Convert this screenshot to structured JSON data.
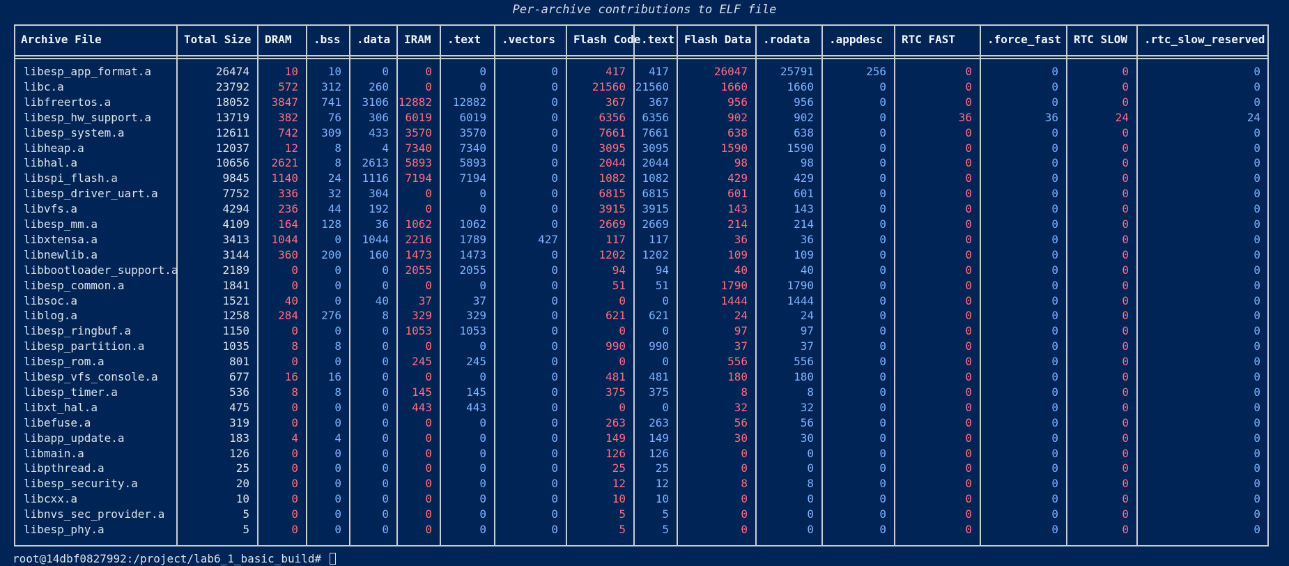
{
  "caption": "Per-archive contributions to ELF file",
  "colors": {
    "background": "#012456",
    "header_text": "#f2f4f7",
    "text_white": "#dde3ea",
    "text_red": "#ff6f7d",
    "text_blue": "#7fb2ff",
    "border": "#c9ced6"
  },
  "columns": [
    {
      "key": "archive",
      "label": "Archive File",
      "color": "white"
    },
    {
      "key": "total",
      "label": "Total Size",
      "color": "white"
    },
    {
      "key": "dram",
      "label": "DRAM",
      "color": "red"
    },
    {
      "key": "bss",
      "label": ".bss",
      "color": "blue"
    },
    {
      "key": "data",
      "label": ".data",
      "color": "blue"
    },
    {
      "key": "iram",
      "label": "IRAM",
      "color": "red"
    },
    {
      "key": "text",
      "label": ".text",
      "color": "blue"
    },
    {
      "key": "vectors",
      "label": ".vectors",
      "color": "blue"
    },
    {
      "key": "flash_code",
      "label": "Flash Code",
      "color": "red"
    },
    {
      "key": "flash_text",
      "label": ".text",
      "color": "blue"
    },
    {
      "key": "flash_data",
      "label": "Flash Data",
      "color": "red"
    },
    {
      "key": "rodata",
      "label": ".rodata",
      "color": "blue"
    },
    {
      "key": "appdesc",
      "label": ".appdesc",
      "color": "blue"
    },
    {
      "key": "rtc_fast",
      "label": "RTC FAST",
      "color": "red"
    },
    {
      "key": "force_fast",
      "label": ".force_fast",
      "color": "blue"
    },
    {
      "key": "rtc_slow",
      "label": "RTC SLOW",
      "color": "red"
    },
    {
      "key": "rtc_slow_reserved",
      "label": ".rtc_slow_reserved",
      "color": "blue"
    }
  ],
  "rows": [
    [
      "libesp_app_format.a",
      "26474",
      "10",
      "10",
      "0",
      "0",
      "0",
      "0",
      "417",
      "417",
      "26047",
      "25791",
      "256",
      "0",
      "0",
      "0",
      "0"
    ],
    [
      "libc.a",
      "23792",
      "572",
      "312",
      "260",
      "0",
      "0",
      "0",
      "21560",
      "21560",
      "1660",
      "1660",
      "0",
      "0",
      "0",
      "0",
      "0"
    ],
    [
      "libfreertos.a",
      "18052",
      "3847",
      "741",
      "3106",
      "12882",
      "12882",
      "0",
      "367",
      "367",
      "956",
      "956",
      "0",
      "0",
      "0",
      "0",
      "0"
    ],
    [
      "libesp_hw_support.a",
      "13719",
      "382",
      "76",
      "306",
      "6019",
      "6019",
      "0",
      "6356",
      "6356",
      "902",
      "902",
      "0",
      "36",
      "36",
      "24",
      "24"
    ],
    [
      "libesp_system.a",
      "12611",
      "742",
      "309",
      "433",
      "3570",
      "3570",
      "0",
      "7661",
      "7661",
      "638",
      "638",
      "0",
      "0",
      "0",
      "0",
      "0"
    ],
    [
      "libheap.a",
      "12037",
      "12",
      "8",
      "4",
      "7340",
      "7340",
      "0",
      "3095",
      "3095",
      "1590",
      "1590",
      "0",
      "0",
      "0",
      "0",
      "0"
    ],
    [
      "libhal.a",
      "10656",
      "2621",
      "8",
      "2613",
      "5893",
      "5893",
      "0",
      "2044",
      "2044",
      "98",
      "98",
      "0",
      "0",
      "0",
      "0",
      "0"
    ],
    [
      "libspi_flash.a",
      "9845",
      "1140",
      "24",
      "1116",
      "7194",
      "7194",
      "0",
      "1082",
      "1082",
      "429",
      "429",
      "0",
      "0",
      "0",
      "0",
      "0"
    ],
    [
      "libesp_driver_uart.a",
      "7752",
      "336",
      "32",
      "304",
      "0",
      "0",
      "0",
      "6815",
      "6815",
      "601",
      "601",
      "0",
      "0",
      "0",
      "0",
      "0"
    ],
    [
      "libvfs.a",
      "4294",
      "236",
      "44",
      "192",
      "0",
      "0",
      "0",
      "3915",
      "3915",
      "143",
      "143",
      "0",
      "0",
      "0",
      "0",
      "0"
    ],
    [
      "libesp_mm.a",
      "4109",
      "164",
      "128",
      "36",
      "1062",
      "1062",
      "0",
      "2669",
      "2669",
      "214",
      "214",
      "0",
      "0",
      "0",
      "0",
      "0"
    ],
    [
      "libxtensa.a",
      "3413",
      "1044",
      "0",
      "1044",
      "2216",
      "1789",
      "427",
      "117",
      "117",
      "36",
      "36",
      "0",
      "0",
      "0",
      "0",
      "0"
    ],
    [
      "libnewlib.a",
      "3144",
      "360",
      "200",
      "160",
      "1473",
      "1473",
      "0",
      "1202",
      "1202",
      "109",
      "109",
      "0",
      "0",
      "0",
      "0",
      "0"
    ],
    [
      "libbootloader_support.a",
      "2189",
      "0",
      "0",
      "0",
      "2055",
      "2055",
      "0",
      "94",
      "94",
      "40",
      "40",
      "0",
      "0",
      "0",
      "0",
      "0"
    ],
    [
      "libesp_common.a",
      "1841",
      "0",
      "0",
      "0",
      "0",
      "0",
      "0",
      "51",
      "51",
      "1790",
      "1790",
      "0",
      "0",
      "0",
      "0",
      "0"
    ],
    [
      "libsoc.a",
      "1521",
      "40",
      "0",
      "40",
      "37",
      "37",
      "0",
      "0",
      "0",
      "1444",
      "1444",
      "0",
      "0",
      "0",
      "0",
      "0"
    ],
    [
      "liblog.a",
      "1258",
      "284",
      "276",
      "8",
      "329",
      "329",
      "0",
      "621",
      "621",
      "24",
      "24",
      "0",
      "0",
      "0",
      "0",
      "0"
    ],
    [
      "libesp_ringbuf.a",
      "1150",
      "0",
      "0",
      "0",
      "1053",
      "1053",
      "0",
      "0",
      "0",
      "97",
      "97",
      "0",
      "0",
      "0",
      "0",
      "0"
    ],
    [
      "libesp_partition.a",
      "1035",
      "8",
      "8",
      "0",
      "0",
      "0",
      "0",
      "990",
      "990",
      "37",
      "37",
      "0",
      "0",
      "0",
      "0",
      "0"
    ],
    [
      "libesp_rom.a",
      "801",
      "0",
      "0",
      "0",
      "245",
      "245",
      "0",
      "0",
      "0",
      "556",
      "556",
      "0",
      "0",
      "0",
      "0",
      "0"
    ],
    [
      "libesp_vfs_console.a",
      "677",
      "16",
      "16",
      "0",
      "0",
      "0",
      "0",
      "481",
      "481",
      "180",
      "180",
      "0",
      "0",
      "0",
      "0",
      "0"
    ],
    [
      "libesp_timer.a",
      "536",
      "8",
      "8",
      "0",
      "145",
      "145",
      "0",
      "375",
      "375",
      "8",
      "8",
      "0",
      "0",
      "0",
      "0",
      "0"
    ],
    [
      "libxt_hal.a",
      "475",
      "0",
      "0",
      "0",
      "443",
      "443",
      "0",
      "0",
      "0",
      "32",
      "32",
      "0",
      "0",
      "0",
      "0",
      "0"
    ],
    [
      "libefuse.a",
      "319",
      "0",
      "0",
      "0",
      "0",
      "0",
      "0",
      "263",
      "263",
      "56",
      "56",
      "0",
      "0",
      "0",
      "0",
      "0"
    ],
    [
      "libapp_update.a",
      "183",
      "4",
      "4",
      "0",
      "0",
      "0",
      "0",
      "149",
      "149",
      "30",
      "30",
      "0",
      "0",
      "0",
      "0",
      "0"
    ],
    [
      "libmain.a",
      "126",
      "0",
      "0",
      "0",
      "0",
      "0",
      "0",
      "126",
      "126",
      "0",
      "0",
      "0",
      "0",
      "0",
      "0",
      "0"
    ],
    [
      "libpthread.a",
      "25",
      "0",
      "0",
      "0",
      "0",
      "0",
      "0",
      "25",
      "25",
      "0",
      "0",
      "0",
      "0",
      "0",
      "0",
      "0"
    ],
    [
      "libesp_security.a",
      "20",
      "0",
      "0",
      "0",
      "0",
      "0",
      "0",
      "12",
      "12",
      "8",
      "8",
      "0",
      "0",
      "0",
      "0",
      "0"
    ],
    [
      "libcxx.a",
      "10",
      "0",
      "0",
      "0",
      "0",
      "0",
      "0",
      "10",
      "10",
      "0",
      "0",
      "0",
      "0",
      "0",
      "0",
      "0"
    ],
    [
      "libnvs_sec_provider.a",
      "5",
      "0",
      "0",
      "0",
      "0",
      "0",
      "0",
      "5",
      "5",
      "0",
      "0",
      "0",
      "0",
      "0",
      "0",
      "0"
    ],
    [
      "libesp_phy.a",
      "5",
      "0",
      "0",
      "0",
      "0",
      "0",
      "0",
      "5",
      "5",
      "0",
      "0",
      "0",
      "0",
      "0",
      "0",
      "0"
    ]
  ],
  "prompt": "root@14dbf0827992:/project/lab6_1_basic_build# "
}
